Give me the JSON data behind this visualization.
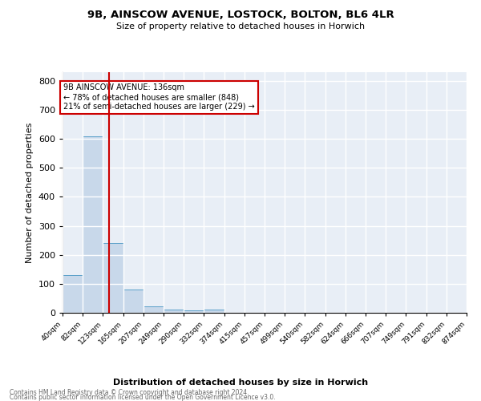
{
  "title_line1": "9B, AINSCOW AVENUE, LOSTOCK, BOLTON, BL6 4LR",
  "title_line2": "Size of property relative to detached houses in Horwich",
  "xlabel": "Distribution of detached houses by size in Horwich",
  "ylabel": "Number of detached properties",
  "annotation_line1": "9B AINSCOW AVENUE: 136sqm",
  "annotation_line2": "← 78% of detached houses are smaller (848)",
  "annotation_line3": "21% of semi-detached houses are larger (229) →",
  "property_size": 136,
  "vline_x": 136,
  "bin_edges": [
    40,
    82,
    123,
    165,
    207,
    249,
    290,
    332,
    374,
    415,
    457,
    499,
    540,
    582,
    624,
    666,
    707,
    749,
    791,
    832,
    874
  ],
  "bin_counts": [
    130,
    610,
    240,
    80,
    22,
    10,
    8,
    10,
    0,
    0,
    0,
    0,
    0,
    0,
    0,
    0,
    0,
    0,
    0,
    0
  ],
  "bar_color": "#c8d8ea",
  "bar_edge_color": "#5a9fc8",
  "vline_color": "#cc0000",
  "background_color": "#e8eef6",
  "grid_color": "white",
  "annotation_box_edge_color": "#cc0000",
  "footnote_line1": "Contains HM Land Registry data © Crown copyright and database right 2024.",
  "footnote_line2": "Contains public sector information licensed under the Open Government Licence v3.0.",
  "ylim": [
    0,
    830
  ],
  "yticks": [
    0,
    100,
    200,
    300,
    400,
    500,
    600,
    700,
    800
  ]
}
